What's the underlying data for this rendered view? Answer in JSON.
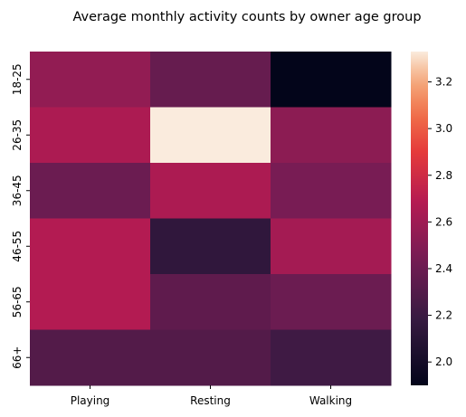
{
  "chart_data": {
    "type": "heatmap",
    "title": "Average monthly activity counts by owner age group",
    "xlabel": "",
    "ylabel": "",
    "x_categories": [
      "Playing",
      "Resting",
      "Walking"
    ],
    "y_categories": [
      "18-25",
      "26-35",
      "36-45",
      "46-55",
      "56-65",
      "66+"
    ],
    "values": [
      [
        2.55,
        2.38,
        1.9
      ],
      [
        2.65,
        3.33,
        2.53
      ],
      [
        2.4,
        2.65,
        2.45
      ],
      [
        2.68,
        2.15,
        2.62
      ],
      [
        2.68,
        2.35,
        2.4
      ],
      [
        2.3,
        2.3,
        2.22
      ]
    ],
    "colorbar": {
      "min": 1.9,
      "max": 3.33,
      "ticks": [
        "2.0",
        "2.2",
        "2.4",
        "2.6",
        "2.8",
        "3.0",
        "3.2"
      ],
      "tick_values": [
        2.0,
        2.2,
        2.4,
        2.6,
        2.8,
        3.0,
        3.2
      ]
    },
    "colormap": "rocket"
  }
}
